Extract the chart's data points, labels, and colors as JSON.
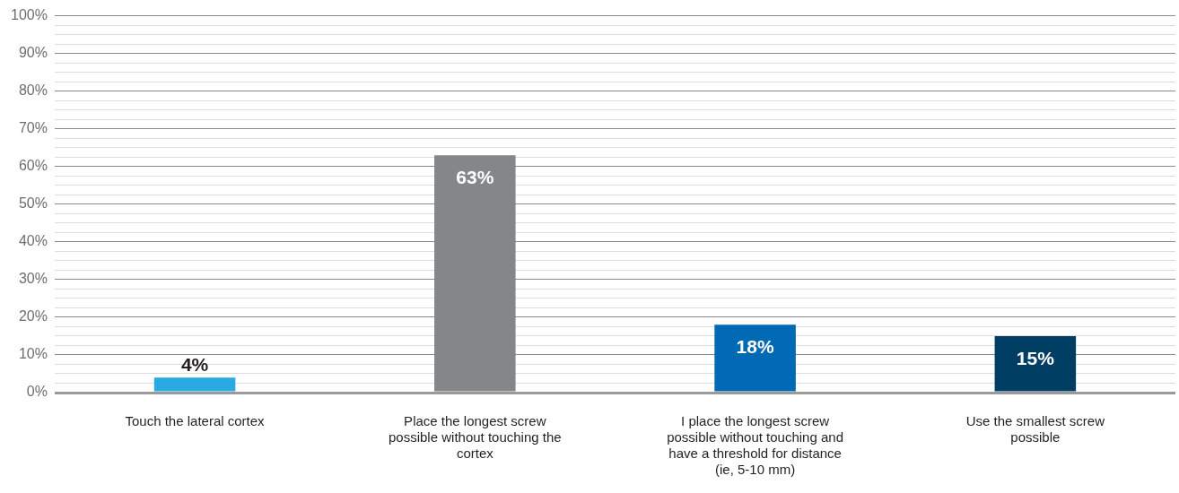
{
  "chart_data": {
    "type": "bar",
    "categories": [
      "Touch the lateral cortex",
      "Place the longest screw possible without touching the cortex",
      "I place the longest screw possible without touching and have a threshold for distance (ie, 5-10 mm)",
      "Use the smallest screw possible"
    ],
    "values": [
      4,
      63,
      18,
      15
    ],
    "colors": [
      "#29abe2",
      "#858689",
      "#0069b4",
      "#003f63"
    ],
    "value_labels": [
      "4%",
      "63%",
      "18%",
      "15%"
    ],
    "ylim": [
      0,
      100
    ],
    "yticks": [
      {
        "value": 0,
        "label": "0%"
      },
      {
        "value": 2.5,
        "label": null
      },
      {
        "value": 5,
        "label": null
      },
      {
        "value": 7.5,
        "label": null
      },
      {
        "value": 10,
        "label": "10%"
      },
      {
        "value": 12.5,
        "label": null
      },
      {
        "value": 15,
        "label": null
      },
      {
        "value": 17.5,
        "label": null
      },
      {
        "value": 20,
        "label": "20%"
      },
      {
        "value": 22.5,
        "label": null
      },
      {
        "value": 25,
        "label": null
      },
      {
        "value": 27.5,
        "label": null
      },
      {
        "value": 30,
        "label": "30%"
      },
      {
        "value": 32.5,
        "label": null
      },
      {
        "value": 35,
        "label": null
      },
      {
        "value": 37.5,
        "label": null
      },
      {
        "value": 40,
        "label": "40%"
      },
      {
        "value": 42.5,
        "label": null
      },
      {
        "value": 45,
        "label": null
      },
      {
        "value": 47.5,
        "label": null
      },
      {
        "value": 50,
        "label": "50%"
      },
      {
        "value": 52.5,
        "label": null
      },
      {
        "value": 55,
        "label": null
      },
      {
        "value": 57.5,
        "label": null
      },
      {
        "value": 60,
        "label": "60%"
      },
      {
        "value": 62.5,
        "label": null
      },
      {
        "value": 65,
        "label": null
      },
      {
        "value": 67.5,
        "label": null
      },
      {
        "value": 70,
        "label": "70%"
      },
      {
        "value": 72.5,
        "label": null
      },
      {
        "value": 75,
        "label": null
      },
      {
        "value": 77.5,
        "label": null
      },
      {
        "value": 80,
        "label": "80%"
      },
      {
        "value": 82.5,
        "label": null
      },
      {
        "value": 85,
        "label": null
      },
      {
        "value": 87.5,
        "label": null
      },
      {
        "value": 90,
        "label": "90%"
      },
      {
        "value": 92.5,
        "label": null
      },
      {
        "value": 95,
        "label": null
      },
      {
        "value": 97.5,
        "label": null
      },
      {
        "value": 100,
        "label": "100%"
      }
    ],
    "grid": "y",
    "legend": false
  }
}
